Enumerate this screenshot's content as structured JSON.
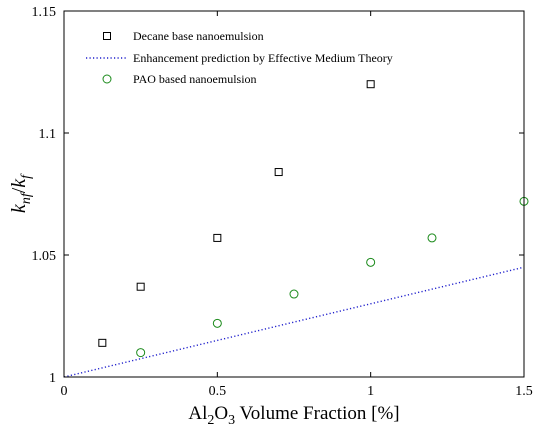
{
  "chart_data": {
    "type": "scatter",
    "xlabel": {
      "main": "Al",
      "sub1": "2",
      "mid": "O",
      "sub2": "3",
      "tail": " Volume Fraction [%]"
    },
    "ylabel": {
      "k1": "k",
      "sub1": "nf",
      "slash": "/",
      "k2": "k",
      "sub2": "f"
    },
    "xlim": [
      0,
      1.5
    ],
    "ylim": [
      1,
      1.15
    ],
    "xticks": [
      0,
      0.5,
      1,
      1.5
    ],
    "xtick_labels": [
      "0",
      "0.5",
      "1",
      "1.5"
    ],
    "yticks": [
      1,
      1.05,
      1.1,
      1.15
    ],
    "ytick_labels": [
      "1",
      "1.05",
      "1.1",
      "1.15"
    ],
    "grid": false,
    "legend_position": "top-left",
    "series": [
      {
        "name": "Decane base nanoemulsion",
        "marker": "square",
        "color": "#000000",
        "x": [
          0.125,
          0.25,
          0.5,
          0.7,
          1.0
        ],
        "y": [
          1.014,
          1.037,
          1.057,
          1.084,
          1.12
        ]
      },
      {
        "name": "Enhancement prediction by Effective Medium Theory",
        "marker": "dotted-line",
        "color": "#1f1fcc",
        "x": [
          0,
          1.5
        ],
        "y": [
          1.0,
          1.045
        ]
      },
      {
        "name": "PAO based nanoemulsion",
        "marker": "circle",
        "color": "#1a8a1a",
        "x": [
          0.25,
          0.5,
          0.75,
          1.0,
          1.2,
          1.5
        ],
        "y": [
          1.01,
          1.022,
          1.034,
          1.047,
          1.057,
          1.072
        ]
      }
    ]
  }
}
